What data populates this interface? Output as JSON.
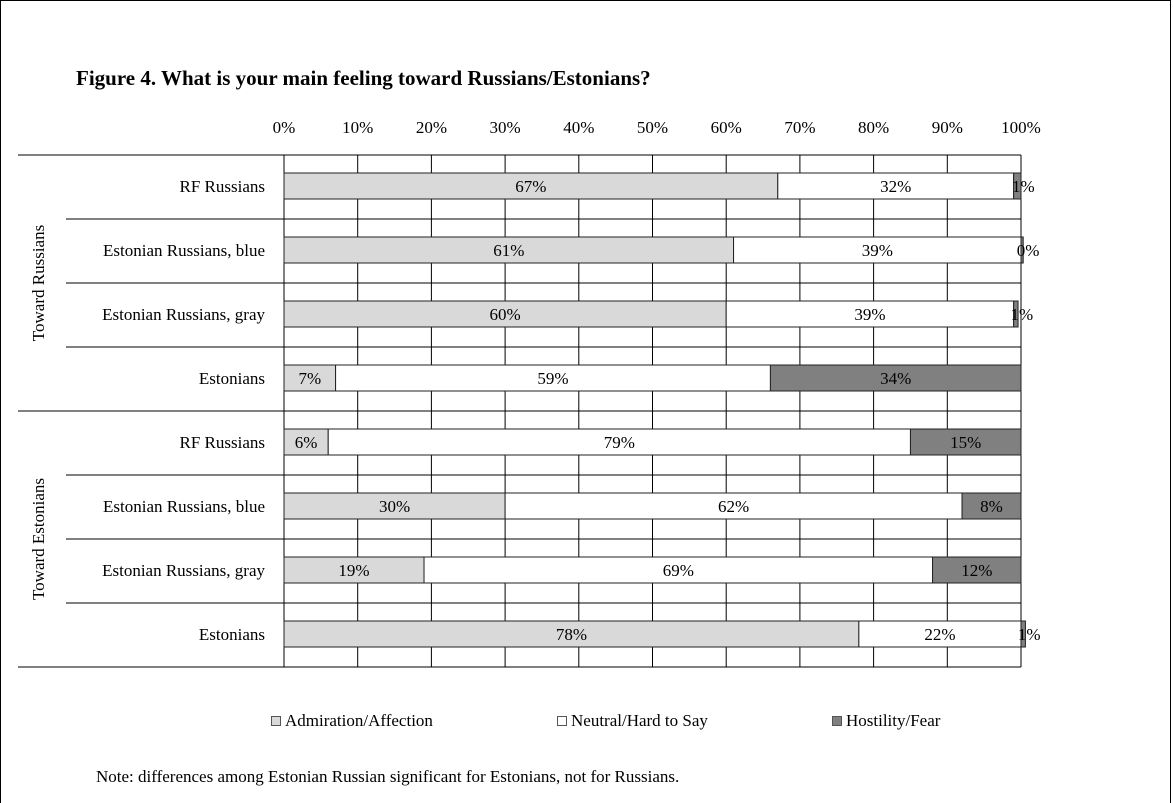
{
  "chart_data": {
    "type": "bar",
    "orientation": "horizontal",
    "stacked": "percent",
    "title": "Figure 4. What is your main feeling toward Russians/Estonians?",
    "xlim": [
      0,
      100
    ],
    "x_ticks": [
      "0%",
      "10%",
      "20%",
      "30%",
      "40%",
      "50%",
      "60%",
      "70%",
      "80%",
      "90%",
      "100%"
    ],
    "groups": [
      {
        "label": "Toward Russians",
        "categories": [
          "RF Russians",
          "Estonian Russians, blue",
          "Estonian Russians, gray",
          "Estonians"
        ]
      },
      {
        "label": "Toward Estonians",
        "categories": [
          "RF Russians",
          "Estonian Russians, blue",
          "Estonian Russians, gray",
          "Estonians"
        ]
      }
    ],
    "series": [
      {
        "name": "Admiration/Affection",
        "color": "#d9d9d9",
        "values": [
          67,
          61,
          60,
          7,
          6,
          30,
          19,
          78
        ],
        "labels": [
          "67%",
          "61%",
          "60%",
          "7%",
          "6%",
          "30%",
          "19%",
          "78%"
        ]
      },
      {
        "name": "Neutral/Hard to Say",
        "color": "#ffffff",
        "values": [
          32,
          39,
          39,
          59,
          79,
          62,
          69,
          22
        ],
        "labels": [
          "32%",
          "39%",
          "39%",
          "59%",
          "79%",
          "62%",
          "69%",
          "22%"
        ]
      },
      {
        "name": "Hostility/Fear",
        "color": "#808080",
        "values": [
          1,
          0.3,
          0.6,
          34,
          15,
          8,
          12,
          0.6
        ],
        "labels": [
          "1%",
          "0%",
          "1%",
          "34%",
          "15%",
          "8%",
          "12%",
          "1%"
        ]
      }
    ],
    "grid": true,
    "legend_position": "bottom"
  },
  "note": "Note:  differences among Estonian Russian significant for Estonians, not for Russians."
}
